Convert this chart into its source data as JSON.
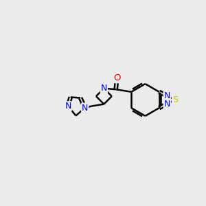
{
  "bg_color": "#ebebeb",
  "bond_color": "#000000",
  "N_color": "#0000ff",
  "O_color": "#ff0000",
  "S_color": "#cccc00",
  "line_width": 1.8,
  "figsize": [
    3.0,
    3.0
  ],
  "dpi": 100,
  "xlim": [
    0,
    10
  ],
  "ylim": [
    0,
    10
  ]
}
